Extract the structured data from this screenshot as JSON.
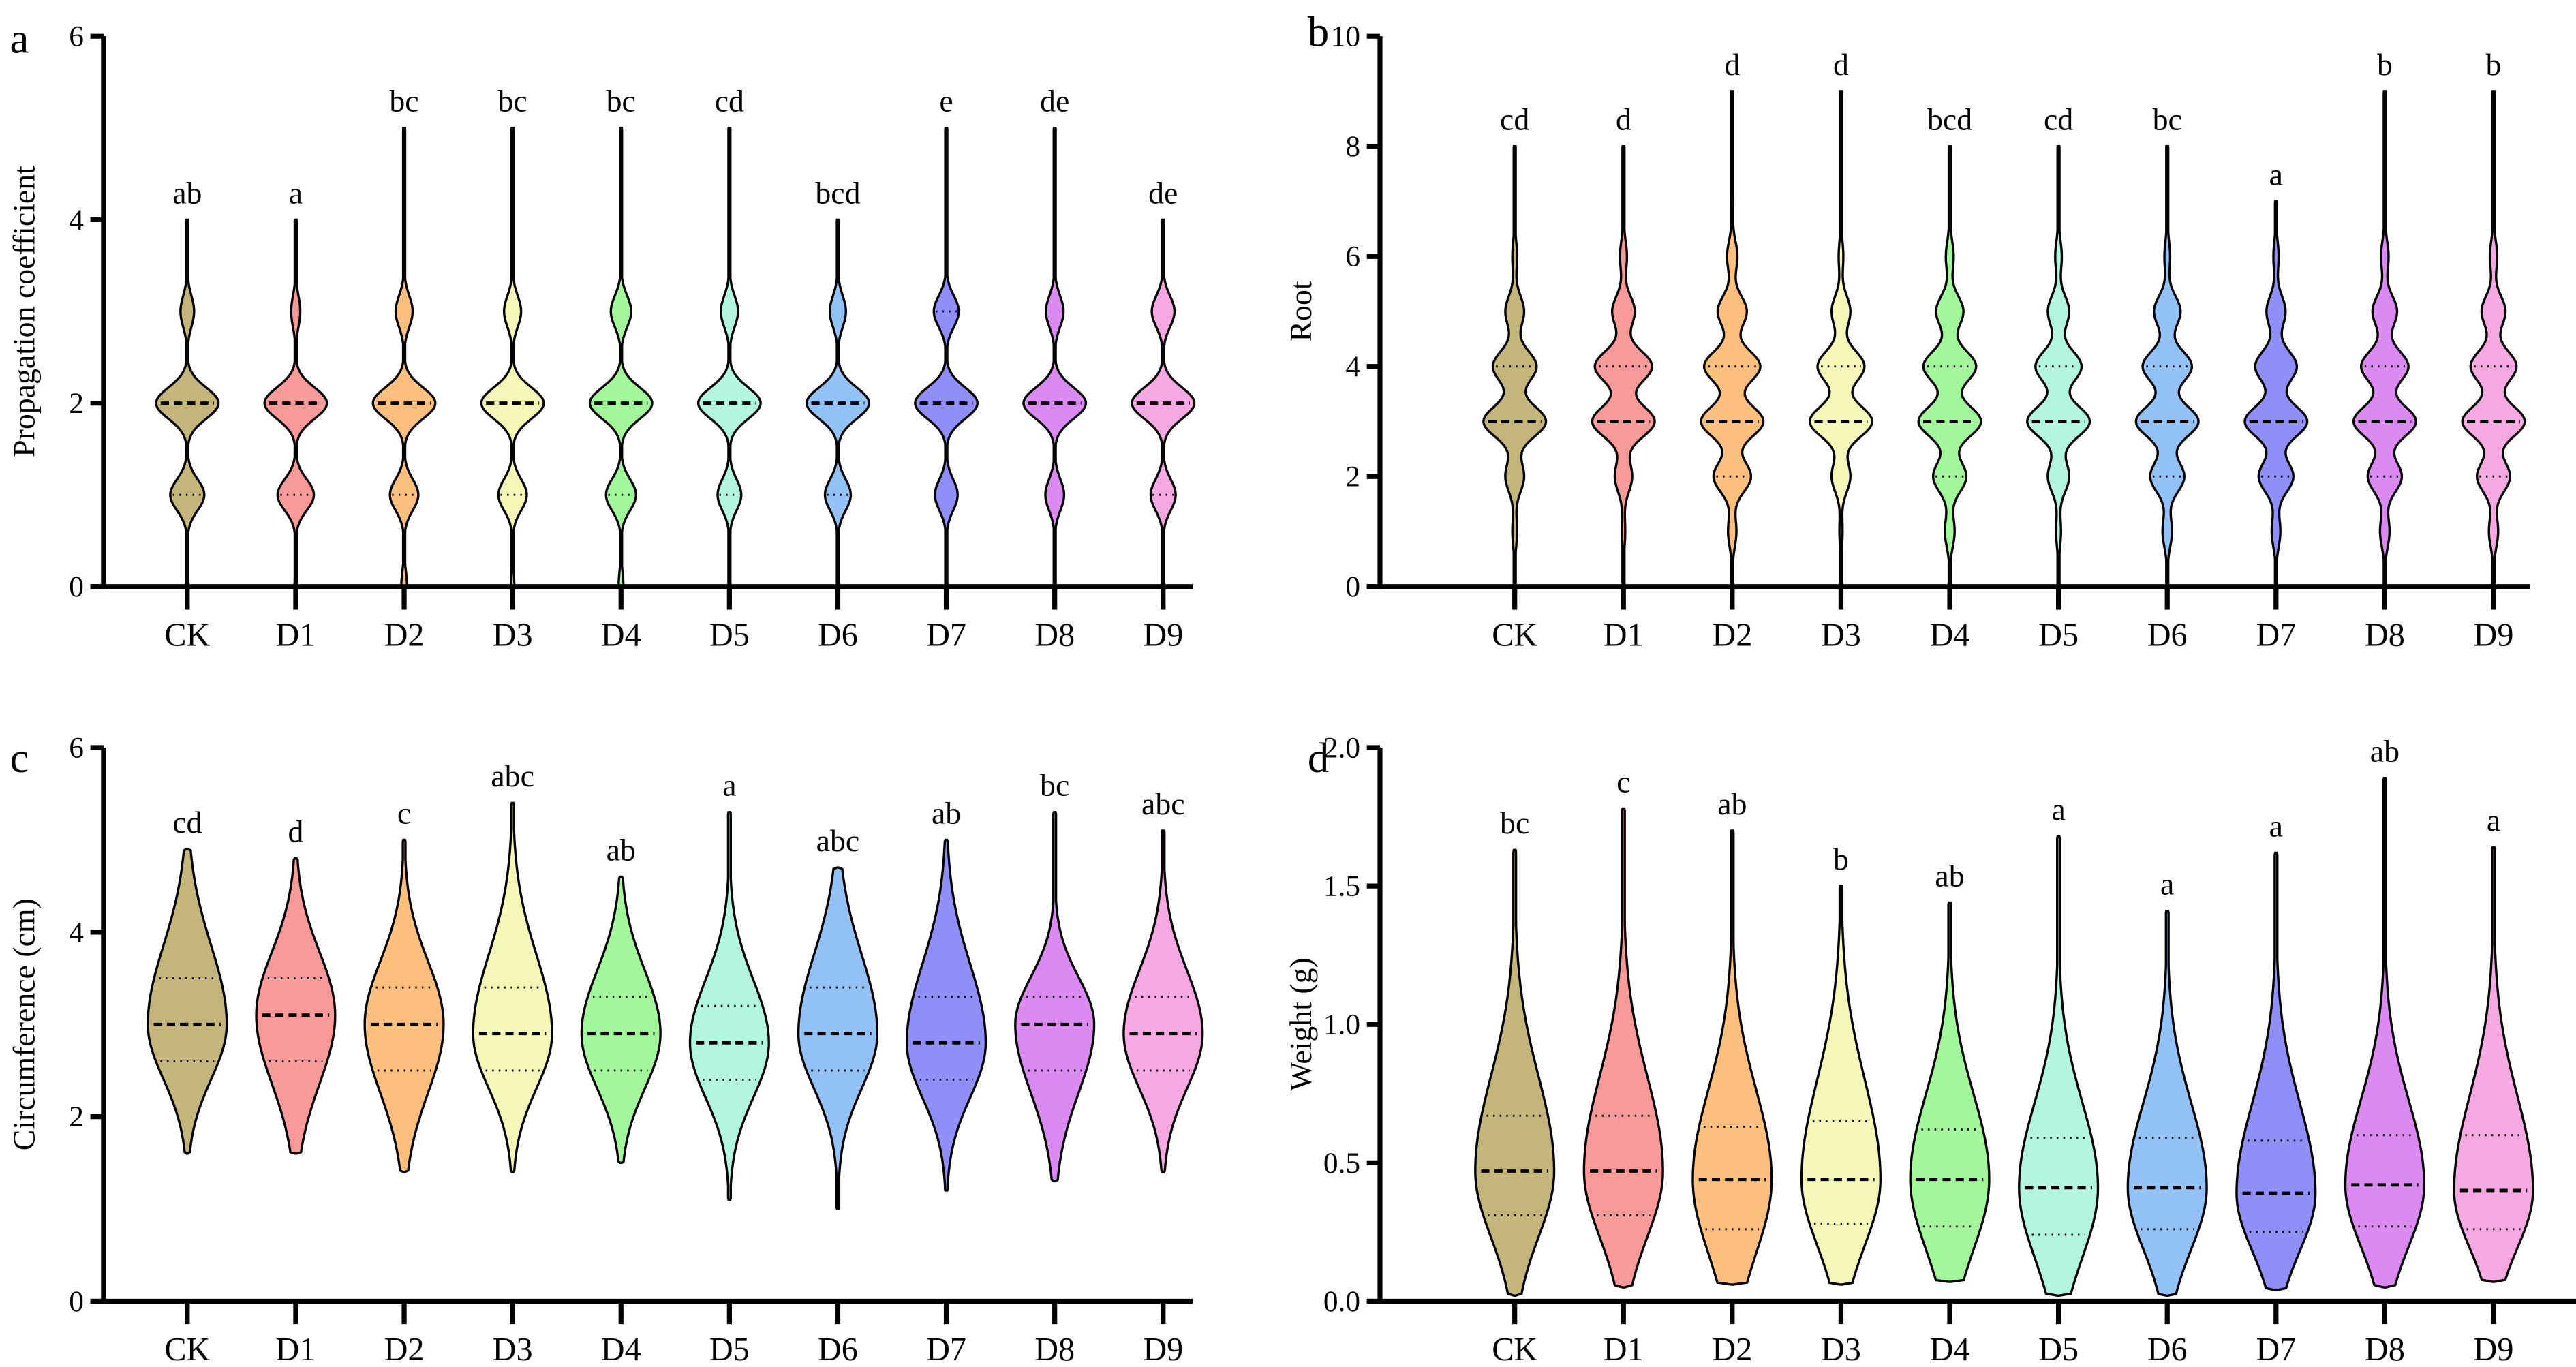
{
  "colors": [
    "#c4b67a",
    "#f99a9a",
    "#fdbf7e",
    "#f4f7b8",
    "#a2f79a",
    "#b2f5e0",
    "#93c2f7",
    "#8f8ff7",
    "#db8af2",
    "#f6a8e3"
  ],
  "chart_data": [
    {
      "panel": "a",
      "type": "violin",
      "discrete": true,
      "ylabel": "Propagation coefficient",
      "ylim": [
        0,
        6
      ],
      "yticks": [
        "0",
        "2",
        "4",
        "6"
      ],
      "ytick_values": [
        0,
        2,
        4,
        6
      ],
      "categories": [
        "CK",
        "D1",
        "D2",
        "D3",
        "D4",
        "D5",
        "D6",
        "D7",
        "D8",
        "D9"
      ],
      "letters": [
        "ab",
        "a",
        "bc",
        "bc",
        "bc",
        "cd",
        "bcd",
        "e",
        "de",
        "de"
      ],
      "median": [
        2,
        2,
        2,
        2,
        2,
        2,
        2,
        2,
        2,
        2
      ],
      "q1": [
        1,
        1,
        1,
        1,
        1,
        1,
        1,
        2,
        2,
        1
      ],
      "q3": [
        2,
        2,
        2,
        2,
        2,
        2,
        2,
        3,
        2,
        2
      ],
      "max": [
        4,
        4,
        5,
        5,
        5,
        5,
        4,
        5,
        5,
        4
      ],
      "level_weights": [
        [
          0.02,
          0.3,
          0.55,
          0.12,
          0.01,
          0
        ],
        [
          0.02,
          0.32,
          0.55,
          0.08,
          0.01,
          0
        ],
        [
          0.05,
          0.25,
          0.55,
          0.15,
          0.01,
          0.005
        ],
        [
          0.03,
          0.25,
          0.55,
          0.15,
          0.015,
          0.005
        ],
        [
          0.04,
          0.25,
          0.52,
          0.17,
          0.015,
          0.005
        ],
        [
          0.01,
          0.22,
          0.58,
          0.16,
          0.01,
          0.005
        ],
        [
          0.01,
          0.24,
          0.58,
          0.15,
          0.005,
          0
        ],
        [
          0.005,
          0.2,
          0.55,
          0.22,
          0.01,
          0.005
        ],
        [
          0.005,
          0.18,
          0.6,
          0.17,
          0.01,
          0.005
        ],
        [
          0.005,
          0.22,
          0.55,
          0.2,
          0.005,
          0
        ]
      ]
    },
    {
      "panel": "b",
      "type": "violin",
      "discrete": true,
      "ylabel": "Root",
      "ylim": [
        0,
        10
      ],
      "yticks": [
        "0",
        "2",
        "4",
        "6",
        "8",
        "10"
      ],
      "ytick_values": [
        0,
        2,
        4,
        6,
        8,
        10
      ],
      "categories": [
        "CK",
        "D1",
        "D2",
        "D3",
        "D4",
        "D5",
        "D6",
        "D7",
        "D8",
        "D9"
      ],
      "letters": [
        "cd",
        "d",
        "d",
        "d",
        "bcd",
        "cd",
        "bc",
        "a",
        "b",
        "b"
      ],
      "median": [
        3,
        3,
        3,
        3,
        3,
        3,
        3,
        3,
        3,
        3
      ],
      "q1": [
        3,
        3,
        2,
        3,
        2,
        3,
        2,
        2,
        2,
        2
      ],
      "q3": [
        4,
        4,
        4,
        4,
        4,
        4,
        4,
        3,
        4,
        4
      ],
      "max": [
        8,
        8,
        9,
        9,
        8,
        8,
        8,
        7,
        9,
        9
      ],
      "level_weights": [
        [
          0.005,
          0.03,
          0.12,
          0.4,
          0.28,
          0.12,
          0.03,
          0.01,
          0.005,
          0
        ],
        [
          0.005,
          0.02,
          0.1,
          0.36,
          0.33,
          0.13,
          0.04,
          0.01,
          0.005,
          0
        ],
        [
          0.005,
          0.04,
          0.18,
          0.3,
          0.27,
          0.14,
          0.05,
          0.01,
          0.005,
          0.002
        ],
        [
          0.005,
          0.02,
          0.12,
          0.4,
          0.3,
          0.12,
          0.03,
          0.01,
          0.005,
          0.002
        ],
        [
          0.005,
          0.05,
          0.17,
          0.32,
          0.27,
          0.14,
          0.04,
          0.01,
          0.005,
          0
        ],
        [
          0.005,
          0.03,
          0.13,
          0.38,
          0.28,
          0.13,
          0.04,
          0.01,
          0.005,
          0
        ],
        [
          0.005,
          0.05,
          0.18,
          0.33,
          0.26,
          0.14,
          0.03,
          0.01,
          0.005,
          0
        ],
        [
          0.005,
          0.05,
          0.2,
          0.36,
          0.24,
          0.11,
          0.03,
          0.005,
          0,
          0
        ],
        [
          0.005,
          0.05,
          0.18,
          0.33,
          0.25,
          0.13,
          0.04,
          0.01,
          0.005,
          0.002
        ],
        [
          0.005,
          0.05,
          0.18,
          0.34,
          0.25,
          0.13,
          0.04,
          0.01,
          0.005,
          0.002
        ]
      ]
    },
    {
      "panel": "c",
      "type": "violin",
      "discrete": false,
      "ylabel": "Circumference (cm)",
      "ylim": [
        0,
        6
      ],
      "yticks": [
        "0",
        "2",
        "4",
        "6"
      ],
      "ytick_values": [
        0,
        2,
        4,
        6
      ],
      "categories": [
        "CK",
        "D1",
        "D2",
        "D3",
        "D4",
        "D5",
        "D6",
        "D7",
        "D8",
        "D9"
      ],
      "letters": [
        "cd",
        "d",
        "c",
        "abc",
        "ab",
        "a",
        "abc",
        "ab",
        "bc",
        "abc"
      ],
      "median": [
        3.0,
        3.1,
        3.0,
        2.9,
        2.9,
        2.8,
        2.9,
        2.8,
        3.0,
        2.9
      ],
      "q1": [
        2.6,
        2.6,
        2.5,
        2.5,
        2.5,
        2.4,
        2.5,
        2.4,
        2.5,
        2.5
      ],
      "q3": [
        3.5,
        3.5,
        3.4,
        3.4,
        3.3,
        3.2,
        3.4,
        3.3,
        3.3,
        3.3
      ],
      "min": [
        1.6,
        1.6,
        1.4,
        1.4,
        1.5,
        1.1,
        1.0,
        1.2,
        1.3,
        1.4
      ],
      "max": [
        4.9,
        4.8,
        5.0,
        5.4,
        4.6,
        5.3,
        4.7,
        5.0,
        5.3,
        5.1
      ]
    },
    {
      "panel": "d",
      "type": "violin",
      "discrete": false,
      "ylabel": "Weight (g)",
      "ylim": [
        0,
        2.0
      ],
      "yticks": [
        "0.0",
        "0.5",
        "1.0",
        "1.5",
        "2.0"
      ],
      "ytick_values": [
        0,
        0.5,
        1.0,
        1.5,
        2.0
      ],
      "categories": [
        "CK",
        "D1",
        "D2",
        "D3",
        "D4",
        "D5",
        "D6",
        "D7",
        "D8",
        "D9"
      ],
      "letters": [
        "bc",
        "c",
        "ab",
        "b",
        "ab",
        "a",
        "a",
        "a",
        "ab",
        "a"
      ],
      "median": [
        0.47,
        0.47,
        0.44,
        0.44,
        0.44,
        0.41,
        0.41,
        0.39,
        0.42,
        0.4
      ],
      "q1": [
        0.31,
        0.31,
        0.26,
        0.28,
        0.27,
        0.24,
        0.26,
        0.25,
        0.27,
        0.26
      ],
      "q3": [
        0.67,
        0.67,
        0.63,
        0.65,
        0.62,
        0.59,
        0.59,
        0.58,
        0.6,
        0.6
      ],
      "min": [
        0.02,
        0.05,
        0.06,
        0.06,
        0.07,
        0.02,
        0.02,
        0.04,
        0.05,
        0.07
      ],
      "max": [
        1.63,
        1.78,
        1.7,
        1.5,
        1.44,
        1.68,
        1.41,
        1.62,
        1.89,
        1.64
      ]
    }
  ]
}
